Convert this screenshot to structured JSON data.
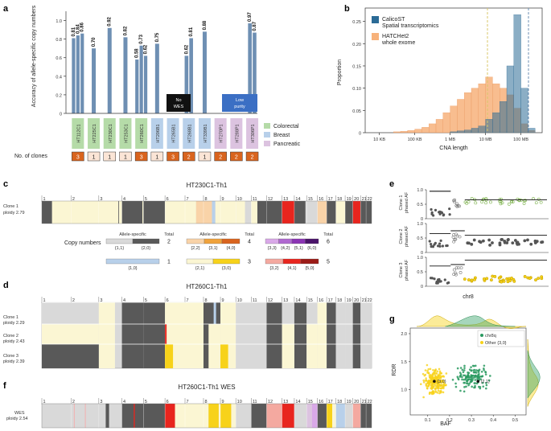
{
  "panels": {
    "a": "a",
    "b": "b",
    "c": "c",
    "d": "d",
    "e": "e",
    "f": "f",
    "g": "g"
  },
  "colors": {
    "bar": "#6e8fb3",
    "colorectal": "#b5dba8",
    "breast": "#b8d0ea",
    "pancreatic": "#dcc3e0",
    "clone_fill_dark": "#d9641e",
    "clone_fill_light": "#fbe5d6",
    "gray_dark": "#595959",
    "gray_light": "#d9d9d9",
    "cream": "#fbf6d3",
    "yellow": "#f7d21a",
    "orange_light": "#f9d3a8",
    "orange_mid": "#f0a23b",
    "red": "#e8251e",
    "purple": "#6b1f82"
  },
  "panel_a": {
    "ylabel": "Accuracy of allele-specific copy numbers",
    "yticks": [
      "0",
      "0.2",
      "0.4",
      "0.6",
      "0.8",
      "1.0"
    ],
    "samples": [
      {
        "name": "HT112C1",
        "type": "colorectal",
        "clones": "3",
        "values": [
          0.81,
          0.84,
          0.86
        ]
      },
      {
        "name": "HT225C1",
        "type": "colorectal",
        "clones": "1",
        "values": [
          0.7
        ]
      },
      {
        "name": "HT230C1",
        "type": "colorectal",
        "clones": "1",
        "values": [
          0.92
        ]
      },
      {
        "name": "HT253C1",
        "type": "colorectal",
        "clones": "1",
        "values": [
          0.82
        ]
      },
      {
        "name": "HT260C1",
        "type": "colorectal",
        "clones": "3",
        "values": [
          0.58,
          0.73,
          0.62
        ]
      },
      {
        "name": "HT206B1",
        "type": "breast",
        "clones": "1",
        "values": [
          0.75
        ]
      },
      {
        "name": "HT265B1",
        "type": "breast",
        "clones": "3",
        "values": []
      },
      {
        "name": "HT268B1",
        "type": "breast",
        "clones": "2",
        "values": [
          0.62,
          0.81
        ]
      },
      {
        "name": "HT339B1",
        "type": "breast",
        "clones": "1",
        "values": [
          0.88
        ]
      },
      {
        "name": "HT270P1",
        "type": "pancreatic",
        "clones": "2",
        "values": []
      },
      {
        "name": "HT288P1",
        "type": "pancreatic",
        "clones": "2",
        "values": []
      },
      {
        "name": "HT306P1",
        "type": "pancreatic",
        "clones": "2",
        "values": [
          0.97,
          0.87
        ]
      }
    ],
    "nowes_label": [
      "No",
      "WES"
    ],
    "lowpurity_label": [
      "Low",
      "purity"
    ],
    "legend": [
      "Colorectal",
      "Breast",
      "Pancreatic"
    ],
    "clones_label": "No. of clones"
  },
  "chart_data": {
    "type": "bar",
    "title": "",
    "xlabel": "CNA length",
    "ylabel": "Proportion",
    "xticks": [
      "10 KB",
      "100 KB",
      "1 MB",
      "10 MB",
      "100 MB"
    ],
    "yticks": [
      "0",
      "0.05",
      "0.10",
      "0.15",
      "0.20",
      "0.25"
    ],
    "ylim": [
      0,
      0.28
    ],
    "log10_x_bin_starts": [
      4.4,
      4.6,
      4.8,
      5.0,
      5.2,
      5.4,
      5.6,
      5.8,
      6.0,
      6.2,
      6.4,
      6.6,
      6.8,
      7.0,
      7.2,
      7.4,
      7.6,
      7.8,
      8.0,
      8.2
    ],
    "series": [
      {
        "name": "CalicoST Spatial transcriptomics",
        "values": [
          0,
          0,
          0,
          0,
          0,
          0,
          0,
          0,
          0.002,
          0.004,
          0.006,
          0.01,
          0.015,
          0.03,
          0.045,
          0.07,
          0.15,
          0.265,
          0.1,
          0.01
        ]
      },
      {
        "name": "HATCHet2 whole exome",
        "values": [
          0.002,
          0.003,
          0.005,
          0.008,
          0.012,
          0.02,
          0.03,
          0.045,
          0.06,
          0.075,
          0.09,
          0.1,
          0.11,
          0.125,
          0.11,
          0.1,
          0.085,
          0.055,
          0.02,
          0.005
        ]
      }
    ],
    "legend_position": "top-left"
  },
  "panel_c": {
    "title": "HT230C1-Th1",
    "row_label": [
      "Clone 1",
      "ploidy 2.79"
    ],
    "chroms": [
      "1",
      "2",
      "3",
      "4",
      "5",
      "6",
      "7",
      "8",
      "9",
      "10",
      "11",
      "12",
      "13",
      "14",
      "15",
      "16",
      "17",
      "18",
      "19",
      "20",
      "21",
      "22"
    ]
  },
  "legend_cn": {
    "heading": "Copy numbers",
    "allele_specific": "Allele-specific",
    "total": "Total",
    "groups": [
      {
        "total": "2",
        "labels": [
          "{1,1}",
          "{2,0}"
        ]
      },
      {
        "total": "4",
        "labels": [
          "{2,2}",
          "{3,1}",
          "{4,0}"
        ]
      },
      {
        "total": "6",
        "labels": [
          "{3,3}",
          "{4,2}",
          "{5,1}",
          "{6,0}"
        ]
      },
      {
        "total": "1",
        "labels": [
          "{1,0}"
        ]
      },
      {
        "total": "3",
        "labels": [
          "{2,1}",
          "{3,0}"
        ]
      },
      {
        "total": "5",
        "labels": [
          "{3,2}",
          "{4,1}",
          "{5,0}"
        ]
      }
    ]
  },
  "panel_d": {
    "title": "HT260C1-Th1",
    "rows": [
      [
        "Clone 1",
        "ploidy 2.29"
      ],
      [
        "Clone 2",
        "ploidy 2.43"
      ],
      [
        "Clone 3",
        "ploidy 2.39"
      ]
    ]
  },
  "panel_e": {
    "ylabels": [
      [
        "Clone 1",
        "phased AF"
      ],
      [
        "Clone 2",
        "phased AF"
      ],
      [
        "Clone 3",
        "phased AF"
      ]
    ],
    "yticks": [
      "0",
      "0.5",
      "1.0"
    ],
    "xlabel": "chr8"
  },
  "panel_f": {
    "title": "HT260C1-Th1 WES",
    "row_label": [
      "WES",
      "ploidy 2.54"
    ]
  },
  "panel_g": {
    "xlabel": "BAF",
    "ylabel": "RDR",
    "xticks": [
      "0.1",
      "0.2",
      "0.3",
      "0.4",
      "0.5"
    ],
    "yticks": [
      "1.0",
      "1.5",
      "2.0"
    ],
    "legend": [
      "chr8q",
      "Other {3,0}"
    ],
    "annotations": [
      "{3,0}",
      "{2,1}"
    ]
  }
}
